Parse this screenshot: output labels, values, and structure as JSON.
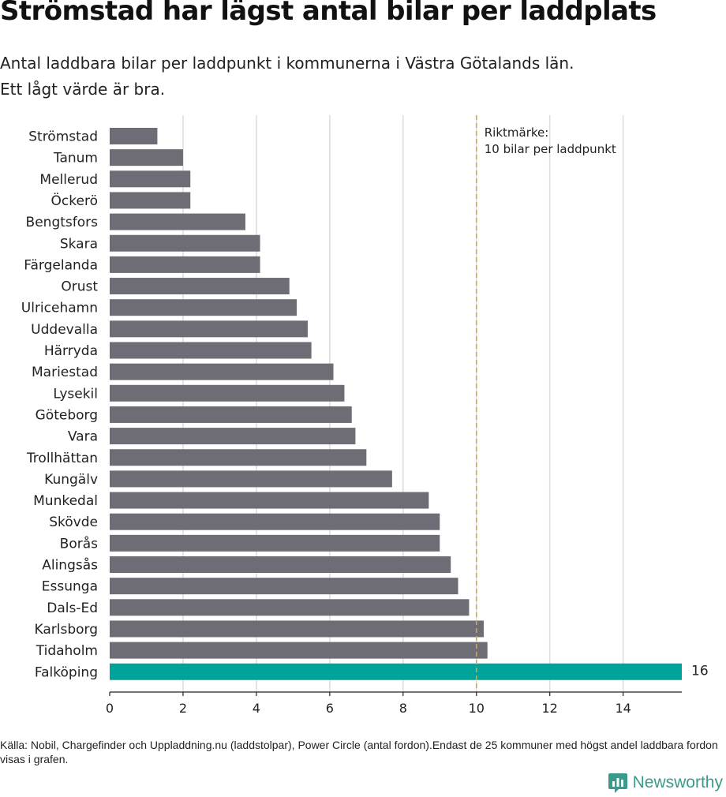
{
  "title": "Strömstad har lägst antal bilar per laddplats",
  "subtitle_line1": "Antal laddbara bilar per laddpunkt i kommunerna i Västra Götalands län.",
  "subtitle_line2": "Ett lågt värde är bra.",
  "source": "Källa: Nobil, Chargefinder och Uppladdning.nu (laddstolpar), Power Circle (antal fordon).Endast de 25 kommuner med högst andel laddbara fordon visas i grafen.",
  "brand": "Newsworthy",
  "colors": {
    "bar": "#6e6d75",
    "highlight": "#00a39a",
    "reference": "#d9a441",
    "grid": "#dcdcdc",
    "brand": "#3a9a8c"
  },
  "chart_data": {
    "type": "bar",
    "orientation": "horizontal",
    "categories": [
      "Strömstad",
      "Tanum",
      "Mellerud",
      "Öckerö",
      "Bengtsfors",
      "Skara",
      "Färgelanda",
      "Orust",
      "Ulricehamn",
      "Uddevalla",
      "Härryda",
      "Mariestad",
      "Lysekil",
      "Göteborg",
      "Vara",
      "Trollhättan",
      "Kungälv",
      "Munkedal",
      "Skövde",
      "Borås",
      "Alingsås",
      "Essunga",
      "Dals-Ed",
      "Karlsborg",
      "Tidaholm",
      "Falköping"
    ],
    "values": [
      1.3,
      2.0,
      2.2,
      2.2,
      3.7,
      4.1,
      4.1,
      4.9,
      5.1,
      5.4,
      5.5,
      6.1,
      6.4,
      6.6,
      6.7,
      7.0,
      7.7,
      8.7,
      9.0,
      9.0,
      9.3,
      9.5,
      9.8,
      10.2,
      10.3,
      16
    ],
    "highlight_category": "Falköping",
    "highlight_label": "16",
    "xlim": [
      0,
      15.6
    ],
    "xticks": [
      0,
      2,
      4,
      6,
      8,
      10,
      12,
      14
    ],
    "grid": true,
    "reference_line": {
      "value": 10,
      "label_line1": "Riktmärke:",
      "label_line2": "10 bilar per laddpunkt"
    }
  }
}
